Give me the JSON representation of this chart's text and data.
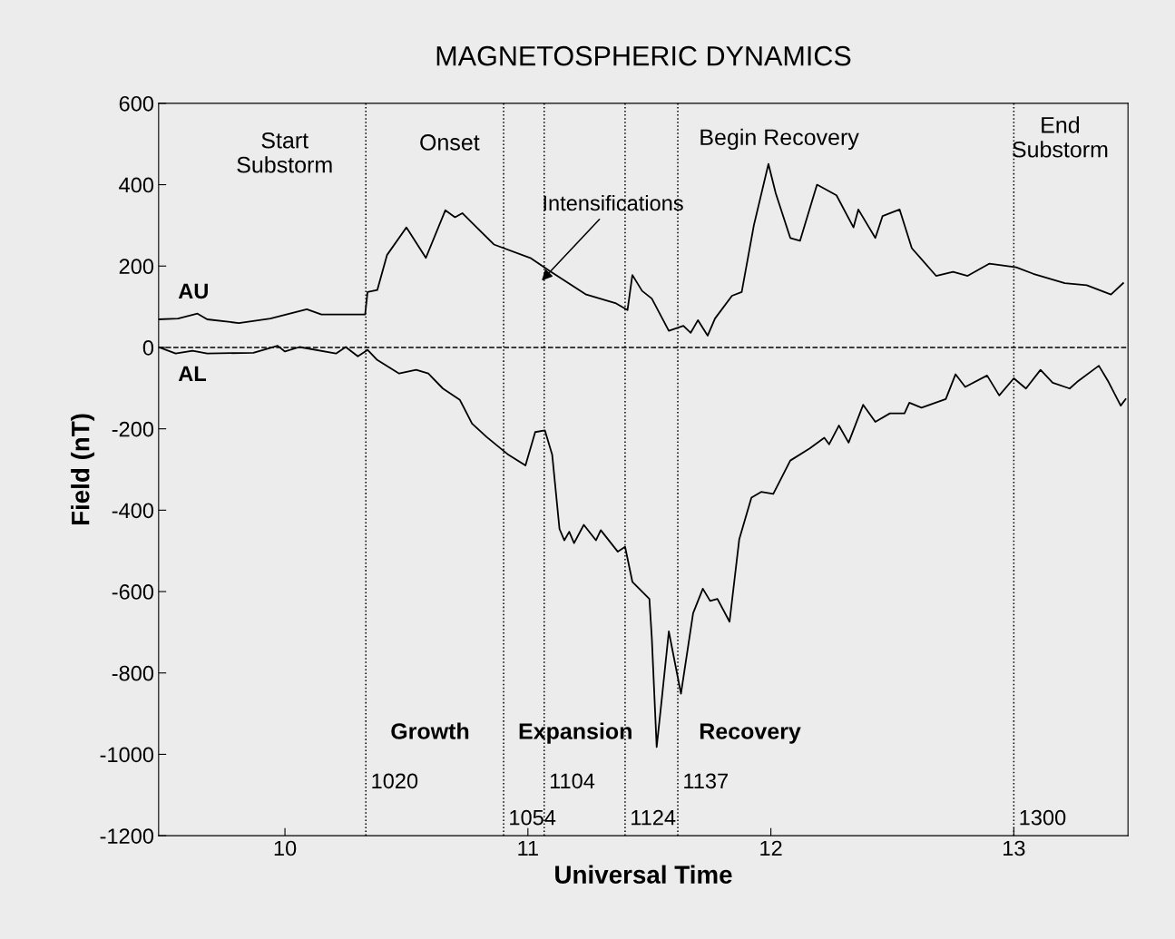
{
  "chart_data": {
    "type": "line",
    "title": "MAGNETOSPHERIC DYNAMICS",
    "xlabel": "Universal Time",
    "ylabel": "Field (nT)",
    "xlim": [
      9.48,
      13.47
    ],
    "ylim": [
      -1200,
      600
    ],
    "xticks": [
      10,
      11,
      12,
      13
    ],
    "yticks": [
      -1200,
      -1000,
      -800,
      -600,
      -400,
      -200,
      0,
      200,
      400,
      600
    ],
    "grid": false,
    "legend": false,
    "marker": "none",
    "line_style": "solid",
    "series": [
      {
        "name": "AU",
        "color": "#000000",
        "x": [
          9.48,
          9.56,
          9.64,
          9.68,
          9.81,
          9.94,
          10.09,
          10.15,
          10.33,
          10.34,
          10.38,
          10.42,
          10.5,
          10.58,
          10.66,
          10.7,
          10.73,
          10.86,
          11.01,
          11.09,
          11.24,
          11.36,
          11.41,
          11.43,
          11.47,
          11.51,
          11.58,
          11.64,
          11.67,
          11.7,
          11.74,
          11.77,
          11.84,
          11.88,
          11.93,
          11.99,
          12.02,
          12.08,
          12.12,
          12.19,
          12.27,
          12.34,
          12.36,
          12.43,
          12.46,
          12.53,
          12.58,
          12.68,
          12.75,
          12.81,
          12.9,
          13.01,
          13.08,
          13.21,
          13.3,
          13.4,
          13.45
        ],
        "values": [
          69,
          71,
          83,
          69,
          60,
          71,
          94,
          81,
          81,
          136,
          141,
          227,
          295,
          220,
          337,
          320,
          330,
          253,
          220,
          188,
          130,
          109,
          92,
          178,
          139,
          120,
          41,
          53,
          36,
          67,
          29,
          71,
          127,
          136,
          300,
          451,
          379,
          269,
          262,
          400,
          374,
          295,
          339,
          269,
          323,
          339,
          244,
          176,
          186,
          176,
          206,
          197,
          181,
          158,
          153,
          130,
          158
        ]
      },
      {
        "name": "AL",
        "color": "#000000",
        "x": [
          9.48,
          9.55,
          9.62,
          9.68,
          9.87,
          9.97,
          10.0,
          10.06,
          10.21,
          10.25,
          10.3,
          10.34,
          10.38,
          10.47,
          10.54,
          10.59,
          10.65,
          10.72,
          10.77,
          10.83,
          10.92,
          10.99,
          11.03,
          11.07,
          11.1,
          11.13,
          11.15,
          11.17,
          11.19,
          11.23,
          11.28,
          11.3,
          11.37,
          11.4,
          11.43,
          11.5,
          11.51,
          11.53,
          11.55,
          11.58,
          11.63,
          11.68,
          11.72,
          11.75,
          11.78,
          11.83,
          11.87,
          11.92,
          11.96,
          12.01,
          12.08,
          12.16,
          12.22,
          12.24,
          12.28,
          12.32,
          12.38,
          12.43,
          12.49,
          12.55,
          12.57,
          12.62,
          12.72,
          12.76,
          12.8,
          12.89,
          12.94,
          13.0,
          13.05,
          13.11,
          13.16,
          13.23,
          13.26,
          13.35,
          13.39,
          13.44,
          13.46
        ],
        "values": [
          1,
          -15,
          -8,
          -15,
          -13,
          4,
          -10,
          1,
          -15,
          1,
          -22,
          -6,
          -31,
          -64,
          -55,
          -64,
          -101,
          -129,
          -187,
          -220,
          -264,
          -290,
          -208,
          -204,
          -264,
          -446,
          -474,
          -453,
          -481,
          -436,
          -474,
          -449,
          -502,
          -490,
          -576,
          -618,
          -714,
          -982,
          -870,
          -698,
          -851,
          -653,
          -593,
          -623,
          -618,
          -674,
          -471,
          -369,
          -355,
          -360,
          -278,
          -248,
          -222,
          -238,
          -192,
          -234,
          -141,
          -183,
          -162,
          -162,
          -136,
          -148,
          -127,
          -66,
          -97,
          -69,
          -118,
          -76,
          -101,
          -55,
          -87,
          -101,
          -85,
          -45,
          -85,
          -143,
          -127
        ]
      }
    ],
    "ref_lines": [
      {
        "axis": "y",
        "value": 0,
        "line_style": "dashed"
      },
      {
        "axis": "x",
        "value": 10.333,
        "line_style": "dotted"
      },
      {
        "axis": "x",
        "value": 10.9,
        "line_style": "dotted"
      },
      {
        "axis": "x",
        "value": 11.067,
        "line_style": "dotted"
      },
      {
        "axis": "x",
        "value": 11.4,
        "line_style": "dotted"
      },
      {
        "axis": "x",
        "value": 11.617,
        "line_style": "dotted"
      },
      {
        "axis": "x",
        "value": 13.0,
        "line_style": "dotted"
      }
    ],
    "annotations": [
      "Start\nSubstorm",
      "Onset",
      "Begin Recovery",
      "End\nSubstorm",
      {
        "text": "Intensifications",
        "x": 11.05,
        "y": 160
      },
      "Growth",
      "Expansion",
      "Recovery",
      {
        "text": "1020",
        "x": 10.333,
        "y": -1070
      },
      {
        "text": "1054",
        "x": 10.9,
        "y": -1160
      },
      {
        "text": "1104",
        "x": 11.067,
        "y": -1070
      },
      {
        "text": "1124",
        "x": 11.4,
        "y": -1160
      },
      {
        "text": "1137",
        "x": 11.617,
        "y": -1070
      },
      {
        "text": "1300",
        "x": 13.0,
        "y": -1160
      }
    ]
  }
}
